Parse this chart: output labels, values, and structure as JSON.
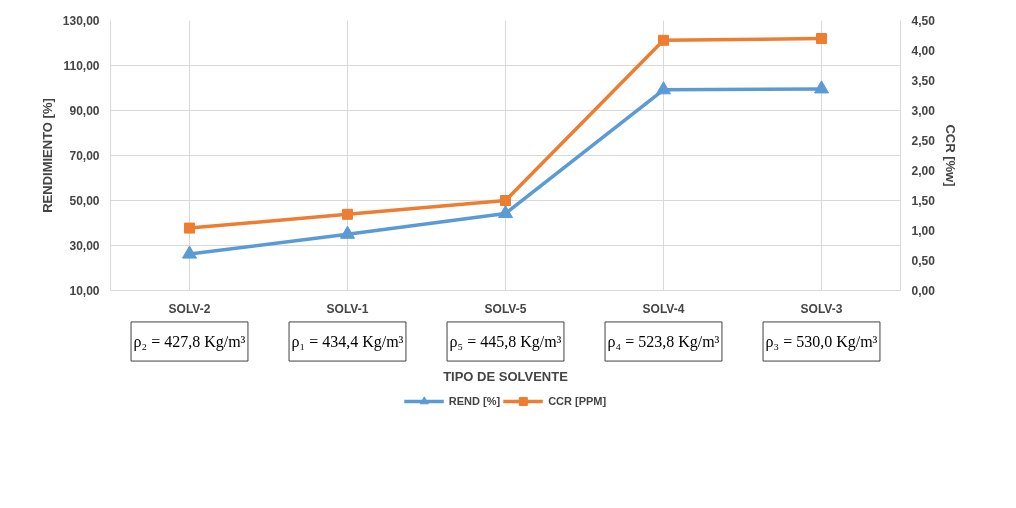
{
  "chart_data": {
    "type": "line",
    "categories": [
      "SOLV-2",
      "SOLV-1",
      "SOLV-5",
      "SOLV-4",
      "SOLV-3"
    ],
    "series": [
      {
        "name": "REND [%]",
        "color": "#5b9bd5",
        "marker": "triangle",
        "values": [
          26.2,
          35.0,
          44.2,
          99.2,
          99.6
        ]
      },
      {
        "name": "CCR [PPM]",
        "color": "#ed7d31",
        "marker": "square",
        "axis": "y2",
        "values": [
          1.04,
          1.27,
          1.5,
          4.17,
          4.2
        ]
      }
    ],
    "xlabel": "TIPO DE SOLVENTE",
    "ylabel": "RENDIMIENTO [%]",
    "y2label": "CCR [%w]",
    "ylim": [
      10,
      130
    ],
    "yticks": [
      {
        "value": 10,
        "label": "10,00"
      },
      {
        "value": 30,
        "label": "30,00"
      },
      {
        "value": 50,
        "label": "50,00"
      },
      {
        "value": 70,
        "label": "70,00"
      },
      {
        "value": 90,
        "label": "90,00"
      },
      {
        "value": 110,
        "label": "110,00"
      },
      {
        "value": 130,
        "label": "130,00"
      }
    ],
    "y2lim": [
      0,
      4.5
    ],
    "y2ticks": [
      {
        "value": 0,
        "label": "0,00"
      },
      {
        "value": 0.5,
        "label": "0,50"
      },
      {
        "value": 1,
        "label": "1,00"
      },
      {
        "value": 1.5,
        "label": "1,50"
      },
      {
        "value": 2,
        "label": "2,00"
      },
      {
        "value": 2.5,
        "label": "2,50"
      },
      {
        "value": 3,
        "label": "3,00"
      },
      {
        "value": 3.5,
        "label": "3,50"
      },
      {
        "value": 4,
        "label": "4,00"
      },
      {
        "value": 4.5,
        "label": "4,50"
      }
    ],
    "annotations": [
      "ρ₂ = 427,8 Kg/m³",
      "ρ₁ = 434,4 Kg/m³",
      "ρ₅ = 445,8 Kg/m³",
      "ρ₄ = 523,8 Kg/m³",
      "ρ₃ = 530,0 Kg/m³"
    ],
    "grid": true,
    "legend": "bottom",
    "line_style": "solid"
  }
}
